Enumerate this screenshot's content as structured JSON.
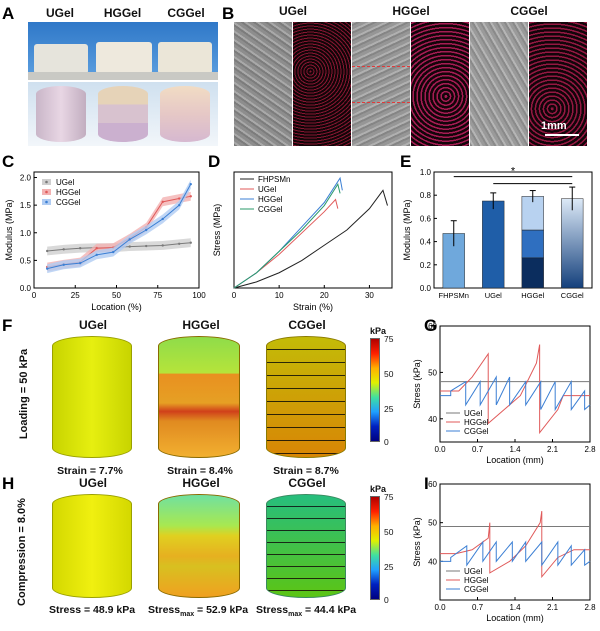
{
  "panels": {
    "A": "A",
    "B": "B",
    "C": "C",
    "D": "D",
    "E": "E",
    "F": "F",
    "G": "G",
    "H": "H",
    "I": "I"
  },
  "gels": [
    "UGel",
    "HGGel",
    "CGGel"
  ],
  "panel_b": {
    "scale_bar": "1mm"
  },
  "panel_f": {
    "side_label": "Loading = 50 kPa",
    "captions": [
      "Strain = 7.7%",
      "Strain = 8.4%",
      "Strain = 8.7%"
    ],
    "colorbar_unit": "kPa",
    "colorbar_ticks": [
      "75",
      "50",
      "25",
      "0"
    ]
  },
  "panel_h": {
    "side_label": "Compression = 8.0%",
    "captions": [
      "Stress = 48.9 kPa",
      "Stress",
      "= 52.9 kPa",
      "Stress",
      "= 44.4 kPa"
    ],
    "subscripts": [
      "max",
      "max"
    ],
    "colorbar_unit": "kPa",
    "colorbar_ticks": [
      "75",
      "50",
      "25",
      "0"
    ]
  },
  "colors": {
    "ugel": "#7a7a7a",
    "hggel": "#e05a5a",
    "cggel": "#3b7fd4",
    "ugel_band": "#cfcfcf",
    "hggel_band": "#f3b2b2",
    "cggel_band": "#b0ccf2"
  },
  "chart_data": [
    {
      "panel": "C",
      "type": "line",
      "xlabel": "Location (%)",
      "ylabel": "Modulus (MPa)",
      "xlim": [
        0,
        100
      ],
      "ylim": [
        0,
        2.1
      ],
      "xticks": [
        "0",
        "25",
        "50",
        "75",
        "100"
      ],
      "yticks": [
        "0.0",
        "0.5",
        "1.0",
        "1.5",
        "2.0"
      ],
      "legend": [
        "UGel",
        "HGGel",
        "CGGel"
      ],
      "series": [
        {
          "name": "UGel",
          "x": [
            8,
            18,
            28,
            38,
            48,
            58,
            68,
            78,
            88,
            95
          ],
          "y": [
            0.67,
            0.7,
            0.72,
            0.73,
            0.73,
            0.75,
            0.76,
            0.77,
            0.8,
            0.82
          ]
        },
        {
          "name": "HGGel",
          "x": [
            8,
            18,
            28,
            38,
            48,
            58,
            68,
            78,
            88,
            95
          ],
          "y": [
            0.38,
            0.43,
            0.47,
            0.72,
            0.73,
            0.9,
            1.1,
            1.56,
            1.62,
            1.66
          ]
        },
        {
          "name": "CGGel",
          "x": [
            8,
            18,
            28,
            38,
            48,
            58,
            68,
            78,
            88,
            95
          ],
          "y": [
            0.35,
            0.42,
            0.45,
            0.6,
            0.65,
            0.88,
            1.05,
            1.25,
            1.5,
            1.88
          ]
        }
      ]
    },
    {
      "panel": "D",
      "type": "line",
      "xlabel": "Strain (%)",
      "ylabel": "Stress (MPa)",
      "xlim": [
        0,
        35
      ],
      "ylim": [
        0,
        0.38
      ],
      "xticks": [
        "0",
        "10",
        "20",
        "30"
      ],
      "yticks": [],
      "legend": [
        "FHPSMn",
        "UGel",
        "HGGel",
        "CGGel"
      ],
      "series": [
        {
          "name": "FHPSMn",
          "x": [
            0,
            5,
            10,
            15,
            20,
            25,
            30,
            33,
            34
          ],
          "y": [
            0,
            0.02,
            0.05,
            0.09,
            0.14,
            0.19,
            0.26,
            0.32,
            0.27
          ]
        },
        {
          "name": "UGel",
          "x": [
            0,
            5,
            10,
            15,
            20,
            22.5,
            23
          ],
          "y": [
            0,
            0.05,
            0.11,
            0.18,
            0.25,
            0.29,
            0.26
          ]
        },
        {
          "name": "HGGel",
          "x": [
            0,
            5,
            10,
            15,
            20,
            23.5,
            24
          ],
          "y": [
            0,
            0.05,
            0.12,
            0.2,
            0.28,
            0.36,
            0.32
          ]
        },
        {
          "name": "CGGel",
          "x": [
            0,
            5,
            10,
            15,
            20,
            23,
            23.5
          ],
          "y": [
            0,
            0.05,
            0.12,
            0.19,
            0.27,
            0.34,
            0.31
          ]
        }
      ]
    },
    {
      "panel": "E",
      "type": "bar",
      "ylabel": "Modulus (MPa)",
      "ylim": [
        0,
        1.0
      ],
      "yticks": [
        "0.0",
        "0.2",
        "0.4",
        "0.6",
        "0.8",
        "1.0"
      ],
      "categories": [
        "FHPSMn",
        "UGel",
        "HGGel",
        "CGGel"
      ],
      "values": [
        0.47,
        0.75,
        0.79,
        0.77
      ],
      "errors": [
        0.11,
        0.07,
        0.05,
        0.1
      ],
      "annotation": "*"
    },
    {
      "panel": "G",
      "type": "line",
      "xlabel": "Location (mm)",
      "ylabel": "Stress (kPa)",
      "xlim": [
        0,
        2.8
      ],
      "ylim": [
        35,
        60
      ],
      "xticks": [
        "0.0",
        "0.7",
        "1.4",
        "2.1",
        "2.8"
      ],
      "yticks": [
        "40",
        "50",
        "60"
      ],
      "legend": [
        "UGel",
        "HGGel",
        "CGGel"
      ],
      "series": [
        {
          "name": "UGel",
          "x": [
            0,
            2.8
          ],
          "y": [
            48,
            48
          ]
        },
        {
          "name": "HGGel",
          "x": [
            0,
            0.35,
            0.35,
            0.6,
            0.9,
            0.9,
            1.2,
            1.5,
            1.8,
            1.86,
            1.86,
            2.2,
            2.3,
            2.5,
            2.8
          ],
          "y": [
            46,
            46,
            46,
            49,
            54,
            39,
            42,
            45,
            52,
            56,
            37,
            42,
            45,
            45,
            45
          ]
        },
        {
          "name": "CGGel",
          "x": [
            0,
            0.2,
            0.2,
            0.48,
            0.48,
            0.75,
            0.75,
            1.05,
            1.05,
            1.3,
            1.3,
            1.6,
            1.6,
            1.88,
            1.88,
            2.15,
            2.15,
            2.45,
            2.45,
            2.7,
            2.7,
            2.8
          ],
          "y": [
            45,
            45,
            46,
            48,
            43,
            48,
            43,
            49,
            43,
            49,
            43,
            48,
            43,
            48,
            42,
            48,
            42,
            48,
            42,
            46,
            42,
            43
          ]
        }
      ]
    },
    {
      "panel": "I",
      "type": "line",
      "xlabel": "Location (mm)",
      "ylabel": "Stress (kPa)",
      "xlim": [
        0,
        2.8
      ],
      "ylim": [
        30,
        60
      ],
      "xticks": [
        "0.0",
        "0.7",
        "1.4",
        "2.1",
        "2.8"
      ],
      "yticks": [
        "40",
        "50",
        "60"
      ],
      "legend": [
        "UGel",
        "HGGel",
        "CGGel"
      ],
      "series": [
        {
          "name": "UGel",
          "x": [
            0,
            2.8
          ],
          "y": [
            49,
            49
          ]
        },
        {
          "name": "HGGel",
          "x": [
            0,
            0.3,
            0.6,
            0.9,
            0.93,
            0.93,
            1.3,
            1.6,
            1.87,
            1.9,
            1.9,
            2.2,
            2.5,
            2.8
          ],
          "y": [
            42,
            42,
            43,
            46,
            50,
            37,
            40,
            44,
            50,
            53,
            36,
            41,
            43,
            43
          ]
        },
        {
          "name": "CGGel",
          "x": [
            0,
            0.2,
            0.2,
            0.5,
            0.5,
            0.8,
            0.8,
            1.05,
            1.05,
            1.35,
            1.35,
            1.6,
            1.6,
            1.9,
            1.9,
            2.2,
            2.2,
            2.45,
            2.45,
            2.7,
            2.7,
            2.8
          ],
          "y": [
            40,
            40,
            41,
            44,
            39,
            45,
            40,
            45,
            40,
            45,
            40,
            45,
            40,
            45,
            39,
            45,
            39,
            44,
            39,
            43,
            39,
            40
          ]
        }
      ]
    }
  ]
}
